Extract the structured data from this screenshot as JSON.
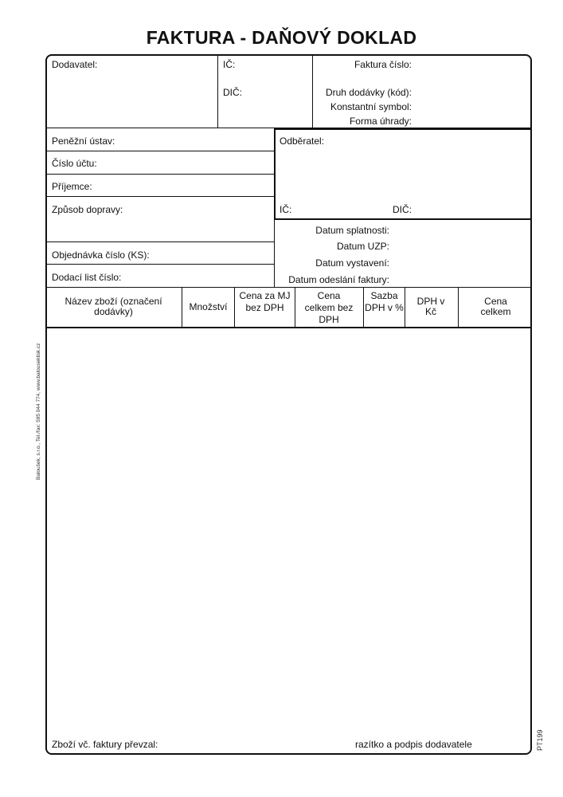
{
  "title": "FAKTURA - DAŇOVÝ DOKLAD",
  "supplier": {
    "dodavatel": "Dodavatel:",
    "ic": "IČ:",
    "dic": "DIČ:"
  },
  "invoice": {
    "cislo": "Faktura číslo:",
    "druh": "Druh dodávky (kód):",
    "ks": "Konstantní symbol:",
    "forma": "Forma úhrady:"
  },
  "left": {
    "ustav": "Peněžní ústav:",
    "ucet": "Číslo účtu:",
    "prijemce": "Příjemce:",
    "doprava": "Způsob dopravy:",
    "objednavka": "Objednávka číslo (KS):",
    "dodaci": "Dodací list číslo:"
  },
  "customer": {
    "odberatel": "Odběratel:",
    "ic": "IČ:",
    "dic": "DIČ:"
  },
  "dates": {
    "splatnost": "Datum splatnosti:",
    "uzp": "Datum UZP:",
    "vystaveni": "Datum vystavení:",
    "odeslani": "Datum odeslání faktury:"
  },
  "table": {
    "columns": [
      "Název zboží (označení dodávky)",
      "Množství",
      "Cena za MJ bez DPH",
      "Cena celkem bez DPH",
      "Sazba DPH v %",
      "DPH v Kč",
      "Cena celkem"
    ]
  },
  "footer": {
    "prevzal": "Zboží vč. faktury převzal:",
    "razitko": "razítko a podpis dodavatele"
  },
  "side_text": "Baloušek, s.r.o., Tel./fax: 595 044 774, www.balousektisk.cz",
  "form_code": "PT199"
}
